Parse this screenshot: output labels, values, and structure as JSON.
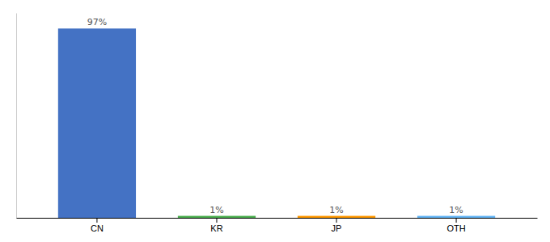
{
  "chart_data": {
    "type": "bar",
    "categories": [
      "CN",
      "KR",
      "JP",
      "OTH"
    ],
    "values": [
      97,
      1,
      1,
      1
    ],
    "colors": [
      "#4472c4",
      "#4caf50",
      "#ff9800",
      "#64b5f6"
    ],
    "ylim": [
      0,
      105
    ],
    "grid": false,
    "data_labels": true,
    "value_labels": [
      "97%",
      "1%",
      "1%",
      "1%"
    ],
    "tick_labels": "x"
  }
}
